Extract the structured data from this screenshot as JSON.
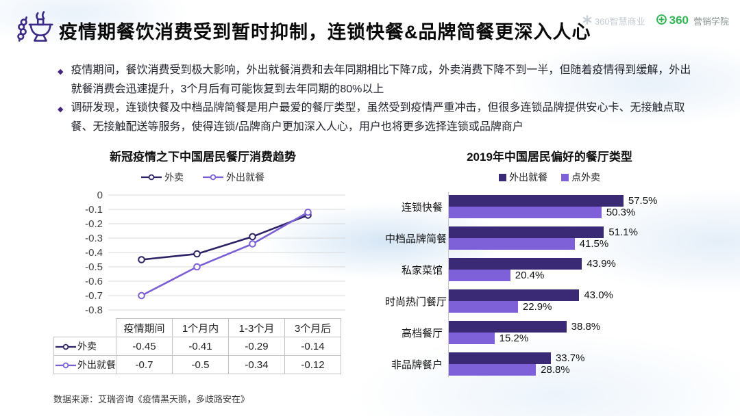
{
  "header": {
    "title": "疫情期餐饮消费受到暂时抑制，连锁快餐&品牌简餐更深入人心"
  },
  "logos": {
    "smart_business": {
      "label": "360智慧商业",
      "color": "#c7cdd6"
    },
    "marketing_academy": {
      "brand": "360",
      "label": "营销学院",
      "color": "#2eb550"
    }
  },
  "bullets": [
    "疫情期间，餐饮消费受到极大影响，外出就餐消费和去年同期相比下降7成，外卖消费下降不到一半，但随着疫情得到缓解，外出就餐消费会迅速提升，3个月后有可能恢复到去年同期的80%以上",
    "调研发现，连锁快餐及中档品牌简餐是用户最爱的餐厅类型，虽然受到疫情严重冲击，但很多连锁品牌提供安心卡、无接触点取餐、无接触配送等服务，使得连锁/品牌商户更加深入人心，用户也将更多选择连锁或品牌商户"
  ],
  "chart_data": [
    {
      "type": "line",
      "title": "新冠疫情之下中国居民餐厅消费趋势",
      "categories": [
        "疫情期间",
        "1个月内",
        "1-3个月",
        "3个月后"
      ],
      "series": [
        {
          "name": "外卖",
          "values": [
            -0.45,
            -0.41,
            -0.29,
            -0.14
          ],
          "color": "#2e2266"
        },
        {
          "name": "外出就餐",
          "values": [
            -0.7,
            -0.5,
            -0.34,
            -0.12
          ],
          "color": "#7b5fd4"
        }
      ],
      "ylim": [
        -0.8,
        0
      ],
      "ytick_step": 0.1,
      "grid": true,
      "legend_position": "top",
      "data_table": true
    },
    {
      "type": "bar",
      "orientation": "horizontal",
      "title": "2019年中国居民偏好的餐厅类型",
      "categories": [
        "连锁快餐",
        "中档品牌简餐",
        "私家菜馆",
        "时尚热门餐厅",
        "高档餐厅",
        "非品牌餐户"
      ],
      "series": [
        {
          "name": "外出就餐",
          "values": [
            57.5,
            51.1,
            43.9,
            43.0,
            38.8,
            33.7
          ],
          "color": "#3a2a75"
        },
        {
          "name": "点外卖",
          "values": [
            50.3,
            41.5,
            20.4,
            22.9,
            15.2,
            28.8
          ],
          "color": "#7e60d8"
        }
      ],
      "value_suffix": "%",
      "xlim": [
        0,
        62
      ],
      "grid": false,
      "legend_position": "top"
    }
  ],
  "footer": {
    "source": "数据来源：艾瑞咨询《疫情黑天鹅，多歧路安在》"
  }
}
